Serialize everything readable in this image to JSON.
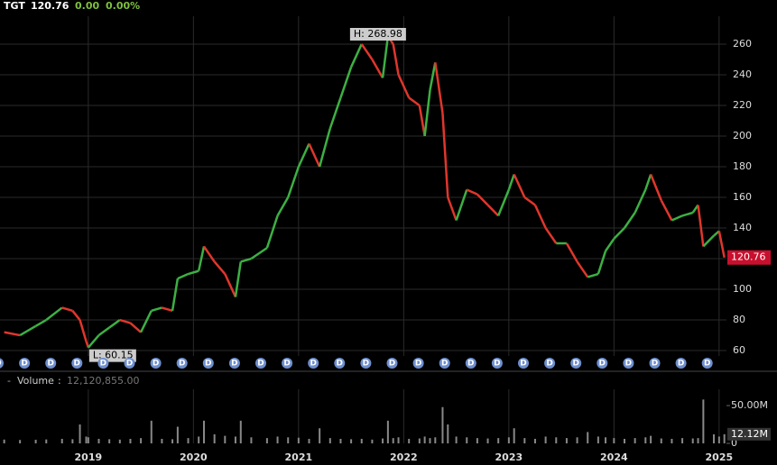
{
  "header": {
    "symbol": "TGT",
    "last": "120.76",
    "change": "0.00",
    "change_pct": "0.00%"
  },
  "chart_data": {
    "type": "candle-line",
    "x": [
      2018.2,
      2018.35,
      2018.5,
      2018.6,
      2018.75,
      2018.85,
      2018.92,
      2018.98,
      2019.0,
      2019.1,
      2019.2,
      2019.3,
      2019.4,
      2019.5,
      2019.6,
      2019.7,
      2019.8,
      2019.85,
      2019.95,
      2020.05,
      2020.1,
      2020.2,
      2020.3,
      2020.4,
      2020.45,
      2020.55,
      2020.7,
      2020.8,
      2020.9,
      2021.0,
      2021.1,
      2021.2,
      2021.3,
      2021.4,
      2021.5,
      2021.6,
      2021.7,
      2021.8,
      2021.85,
      2021.9,
      2021.95,
      2022.05,
      2022.15,
      2022.2,
      2022.25,
      2022.3,
      2022.37,
      2022.42,
      2022.5,
      2022.6,
      2022.7,
      2022.8,
      2022.9,
      2023.0,
      2023.05,
      2023.15,
      2023.25,
      2023.35,
      2023.45,
      2023.55,
      2023.65,
      2023.75,
      2023.85,
      2023.92,
      2024.0,
      2024.1,
      2024.2,
      2024.3,
      2024.35,
      2024.45,
      2024.55,
      2024.65,
      2024.75,
      2024.8,
      2024.85,
      2024.95,
      2025.0,
      2025.05
    ],
    "series": [
      {
        "name": "TGT",
        "values": [
          72,
          70,
          76,
          80,
          88,
          86,
          80,
          66,
          62,
          70,
          75,
          80,
          78,
          72,
          86,
          88,
          86,
          107,
          110,
          112,
          128,
          118,
          110,
          95,
          118,
          120,
          127,
          148,
          160,
          180,
          195,
          180,
          205,
          225,
          245,
          260,
          250,
          238,
          265,
          260,
          240,
          225,
          220,
          200,
          230,
          248,
          215,
          160,
          145,
          165,
          162,
          155,
          148,
          165,
          175,
          160,
          155,
          140,
          130,
          130,
          118,
          108,
          110,
          125,
          133,
          140,
          150,
          165,
          175,
          158,
          145,
          148,
          150,
          155,
          128,
          135,
          138,
          120.76
        ]
      }
    ],
    "volume": {
      "name": "Volume",
      "values": [
        5000000,
        4500000,
        4800000,
        5200000,
        6000000,
        5500000,
        25000000,
        9000000,
        8000000,
        6000000,
        5500000,
        5000000,
        6000000,
        7000000,
        30000000,
        6000000,
        5500000,
        22000000,
        7000000,
        9000000,
        30000000,
        12000000,
        10000000,
        9000000,
        30000000,
        8000000,
        7000000,
        9000000,
        8000000,
        7500000,
        6000000,
        20000000,
        7000000,
        6000000,
        5500000,
        6000000,
        5000000,
        6500000,
        30000000,
        7000000,
        8000000,
        6000000,
        6500000,
        9000000,
        7000000,
        8000000,
        48000000,
        25000000,
        9000000,
        8000000,
        7000000,
        6500000,
        7000000,
        8000000,
        20000000,
        7000000,
        6000000,
        9000000,
        8000000,
        7000000,
        8000000,
        15000000,
        9000000,
        8000000,
        7000000,
        6000000,
        7000000,
        8000000,
        10000000,
        6500000,
        6000000,
        7000000,
        6500000,
        7000000,
        58000000,
        12000000,
        9000000,
        12120855
      ],
      "value_label": "12,120,855.00",
      "last_label": "12.12M",
      "ylim": [
        0,
        62000000
      ],
      "yticks": [
        0,
        {
          "value": 50000000,
          "label": "50.00M"
        }
      ],
      "color": "#888"
    },
    "high_label": "H: 268.98",
    "low_label": "L: 60.15",
    "last_price": "120.76",
    "xlim": [
      2018.16,
      2025.07
    ],
    "xticks": [
      2019,
      2020,
      2021,
      2022,
      2023,
      2024,
      2025
    ],
    "ylim": [
      56.5,
      278.2
    ],
    "yticks": [
      60,
      80,
      100,
      120,
      140,
      160,
      180,
      200,
      220,
      240,
      260
    ],
    "grid": true,
    "up_color": "#3cb043",
    "down_color": "#e0362c",
    "dividend_label": "D"
  }
}
